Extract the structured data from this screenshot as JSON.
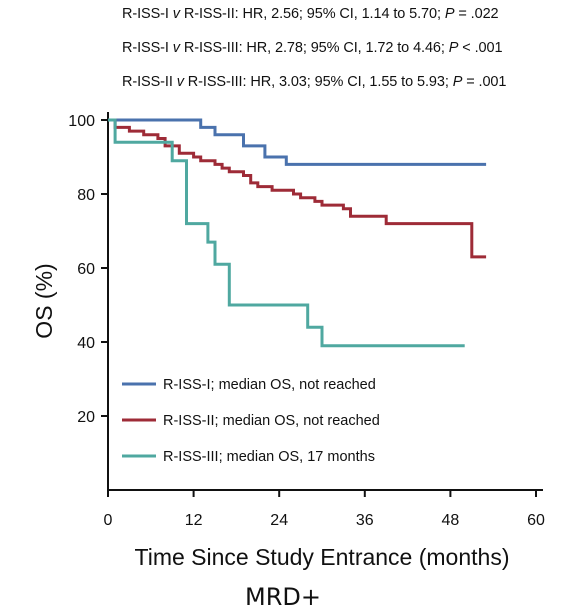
{
  "stats": [
    {
      "a": "R-ISS-I",
      "v": "v",
      "b": "R-ISS-II",
      "hr": "HR, 2.56; 95% CI, 1.14 to 5.70;",
      "p": "P",
      "pval": "= .022"
    },
    {
      "a": "R-ISS-I",
      "v": "v",
      "b": "R-ISS-III",
      "hr": "HR, 2.78; 95% CI, 1.72 to 4.46;",
      "p": "P",
      "pval": "< .001"
    },
    {
      "a": "R-ISS-II",
      "v": "v",
      "b": "R-ISS-III",
      "hr": "HR, 3.03; 95% CI, 1.55 to 5.93;",
      "p": "P",
      "pval": "= .001"
    }
  ],
  "caption": "MRD+",
  "chart_data": {
    "type": "line",
    "subtype": "kaplan-meier step",
    "xlabel": "Time Since Study Entrance (months)",
    "ylabel": "OS (%)",
    "xlim": [
      0,
      60
    ],
    "ylim": [
      0,
      100
    ],
    "xticks": [
      0,
      12,
      24,
      36,
      48,
      60
    ],
    "yticks": [
      20,
      40,
      60,
      80,
      100
    ],
    "grid": false,
    "legend_position": "bottom-left",
    "series": [
      {
        "name": "R-ISS-I; median OS, not reached",
        "color": "#4a72ad",
        "points": [
          [
            0,
            100
          ],
          [
            13,
            100
          ],
          [
            13,
            98
          ],
          [
            15,
            98
          ],
          [
            15,
            96
          ],
          [
            19,
            96
          ],
          [
            19,
            93
          ],
          [
            22,
            93
          ],
          [
            22,
            90
          ],
          [
            25,
            90
          ],
          [
            25,
            88
          ],
          [
            53,
            88
          ]
        ]
      },
      {
        "name": "R-ISS-II; median OS, not reached",
        "color": "#9e2b37",
        "points": [
          [
            0,
            100
          ],
          [
            1,
            100
          ],
          [
            1,
            98
          ],
          [
            3,
            98
          ],
          [
            3,
            97
          ],
          [
            5,
            97
          ],
          [
            5,
            96
          ],
          [
            7,
            96
          ],
          [
            7,
            95
          ],
          [
            8,
            95
          ],
          [
            8,
            93
          ],
          [
            10,
            93
          ],
          [
            10,
            91
          ],
          [
            12,
            91
          ],
          [
            12,
            90
          ],
          [
            13,
            90
          ],
          [
            13,
            89
          ],
          [
            15,
            89
          ],
          [
            15,
            88
          ],
          [
            16,
            88
          ],
          [
            16,
            87
          ],
          [
            17,
            87
          ],
          [
            17,
            86
          ],
          [
            19,
            86
          ],
          [
            19,
            85
          ],
          [
            20,
            85
          ],
          [
            20,
            83
          ],
          [
            21,
            83
          ],
          [
            21,
            82
          ],
          [
            23,
            82
          ],
          [
            23,
            81
          ],
          [
            26,
            81
          ],
          [
            26,
            80
          ],
          [
            27,
            80
          ],
          [
            27,
            79
          ],
          [
            29,
            79
          ],
          [
            29,
            78
          ],
          [
            30,
            78
          ],
          [
            30,
            77
          ],
          [
            33,
            77
          ],
          [
            33,
            76
          ],
          [
            34,
            76
          ],
          [
            34,
            74
          ],
          [
            39,
            74
          ],
          [
            39,
            72
          ],
          [
            51,
            72
          ],
          [
            51,
            63
          ],
          [
            53,
            63
          ]
        ]
      },
      {
        "name": "R-ISS-III; median OS, 17 months",
        "color": "#4fa8a0",
        "points": [
          [
            0,
            100
          ],
          [
            1,
            100
          ],
          [
            1,
            94
          ],
          [
            9,
            94
          ],
          [
            9,
            89
          ],
          [
            11,
            89
          ],
          [
            11,
            72
          ],
          [
            14,
            72
          ],
          [
            14,
            67
          ],
          [
            15,
            67
          ],
          [
            15,
            61
          ],
          [
            17,
            61
          ],
          [
            17,
            50
          ],
          [
            28,
            50
          ],
          [
            28,
            44
          ],
          [
            30,
            44
          ],
          [
            30,
            39
          ],
          [
            50,
            39
          ]
        ]
      }
    ]
  }
}
